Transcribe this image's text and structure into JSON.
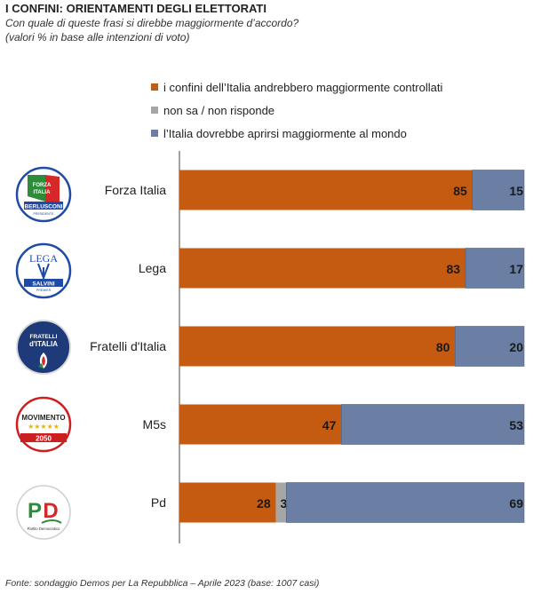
{
  "title": "I CONFINI: ORIENTAMENTI DEGLI ELETTORATI",
  "subtitle_1": "Con quale di queste frasi si direbbe maggiormente d’accordo?",
  "subtitle_2": "(valori % in base alle intenzioni di voto)",
  "footer": "Fonte: sondaggio Demos per La Repubblica – Aprile 2023 (base: 1007 casi)",
  "colors": {
    "controllati": "#c55a11",
    "non_sa": "#a6a6a6",
    "aprirsi": "#6a7fa3"
  },
  "logos": [
    {
      "party": "Forza Italia",
      "text_lines": [
        "FORZA",
        "ITALIA",
        "BERLUSCONI",
        "PRESIDENTE"
      ]
    },
    {
      "party": "Lega",
      "text_lines": [
        "LEGA",
        "SALVINI",
        "PREMIER"
      ]
    },
    {
      "party": "Fratelli d'Italia",
      "text_lines": [
        "FRATELLI",
        "d'ITALIA"
      ]
    },
    {
      "party": "M5s",
      "text_lines": [
        "MOVIMENTO",
        "2050"
      ]
    },
    {
      "party": "Pd",
      "text_lines": [
        "PD",
        "Partito Democratico"
      ]
    }
  ],
  "chart_data": {
    "type": "bar",
    "orientation": "horizontal",
    "stacked": true,
    "categories": [
      "Forza Italia",
      "Lega",
      "Fratelli d'Italia",
      "M5s",
      "Pd"
    ],
    "series": [
      {
        "name": "i confini dell’Italia andrebbero  maggiormente  controllati",
        "values": [
          85,
          83,
          80,
          47,
          28
        ]
      },
      {
        "name": "non sa / non risponde",
        "values": [
          0,
          0,
          0,
          0,
          3
        ]
      },
      {
        "name": "l’Italia dovrebbe  aprirsi maggiormente  al mondo",
        "values": [
          15,
          17,
          20,
          53,
          69
        ]
      }
    ],
    "data_labels": [
      [
        "85",
        "",
        "15"
      ],
      [
        "83",
        "",
        "17"
      ],
      [
        "80",
        "",
        "20"
      ],
      [
        "47",
        "",
        "53"
      ],
      [
        "28",
        "3",
        "69"
      ]
    ],
    "xlim": [
      0,
      100
    ],
    "legend_position": "top",
    "grid": false
  }
}
